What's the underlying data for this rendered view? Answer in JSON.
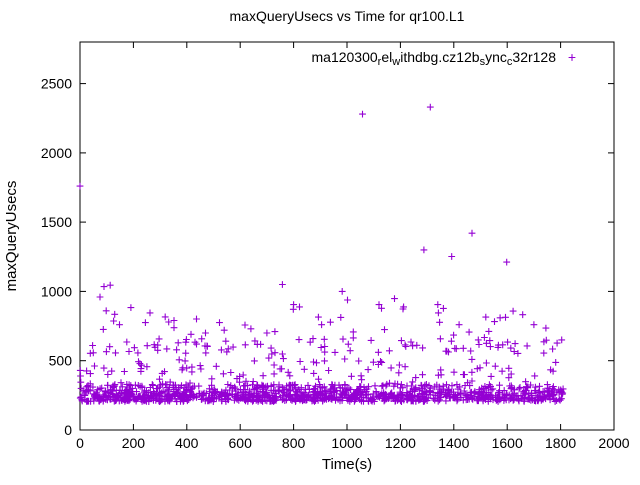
{
  "chart_data": {
    "type": "scatter",
    "title": "maxQueryUsecs vs Time for qr100.L1",
    "xlabel": "Time(s)",
    "ylabel": "maxQueryUsecs",
    "xlim": [
      0,
      2000
    ],
    "ylim": [
      0,
      2800
    ],
    "xticks": [
      0,
      200,
      400,
      600,
      800,
      1000,
      1200,
      1400,
      1600,
      1800,
      2000
    ],
    "yticks": [
      0,
      500,
      1000,
      1500,
      2000,
      2500
    ],
    "grid": false,
    "marker": "plus",
    "marker_color": "#9400D3",
    "axis_color": "#000000",
    "legend": {
      "position": "top-center-inside",
      "label_plain": "ma120300_rel_withdbg.cz12b_sync_c32r128",
      "label_segments": [
        {
          "t": "ma120300"
        },
        {
          "t": "r",
          "sub": true
        },
        {
          "t": "el"
        },
        {
          "t": "w",
          "sub": true
        },
        {
          "t": "ithdbg.cz12b"
        },
        {
          "t": "s",
          "sub": true
        },
        {
          "t": "ync"
        },
        {
          "t": "c",
          "sub": true
        },
        {
          "t": "32r128"
        }
      ]
    },
    "series": [
      {
        "name": "ma120300_rel_withdbg.cz12b_sync_c32r128",
        "high_points": [
          [
            0,
            1760
          ],
          [
            1,
            430
          ],
          [
            2,
            390
          ],
          [
            3,
            345
          ],
          [
            4,
            300
          ],
          [
            75,
            960
          ],
          [
            90,
            1035
          ],
          [
            113,
            1045
          ],
          [
            130,
            835
          ],
          [
            148,
            760
          ],
          [
            245,
            775
          ],
          [
            262,
            845
          ],
          [
            352,
            790
          ],
          [
            470,
            700
          ],
          [
            540,
            720
          ],
          [
            618,
            758
          ],
          [
            640,
            730
          ],
          [
            700,
            700
          ],
          [
            758,
            1050
          ],
          [
            800,
            905
          ],
          [
            822,
            888
          ],
          [
            893,
            815
          ],
          [
            905,
            760
          ],
          [
            938,
            778
          ],
          [
            982,
            1000
          ],
          [
            1002,
            938
          ],
          [
            1058,
            2280
          ],
          [
            1120,
            905
          ],
          [
            1178,
            948
          ],
          [
            1212,
            888
          ],
          [
            1288,
            1300
          ],
          [
            1312,
            2330
          ],
          [
            1340,
            905
          ],
          [
            1392,
            1252
          ],
          [
            1420,
            760
          ],
          [
            1468,
            1420
          ],
          [
            1520,
            815
          ],
          [
            1598,
            1212
          ],
          [
            1622,
            858
          ],
          [
            1658,
            832
          ],
          [
            1700,
            760
          ],
          [
            1745,
            735
          ]
        ],
        "band_seed": 1337,
        "dense_bands": [
          {
            "name": "base-dense-band",
            "count": 1250,
            "x_range": [
              0,
              1810
            ],
            "y_mix": [
              {
                "w": 0.6,
                "range": [
                  205,
                  262
                ]
              },
              {
                "w": 0.32,
                "range": [
                  262,
                  330
                ]
              },
              {
                "w": 0.08,
                "range": [
                  330,
                  520
                ]
              }
            ]
          },
          {
            "name": "mid-sparse-band",
            "count": 120,
            "x_range": [
              5,
              1805
            ],
            "y_mix": [
              {
                "w": 0.72,
                "range": [
                  548,
                  668
                ]
              },
              {
                "w": 0.28,
                "range": [
                  668,
                  885
                ]
              }
            ]
          }
        ]
      }
    ]
  }
}
